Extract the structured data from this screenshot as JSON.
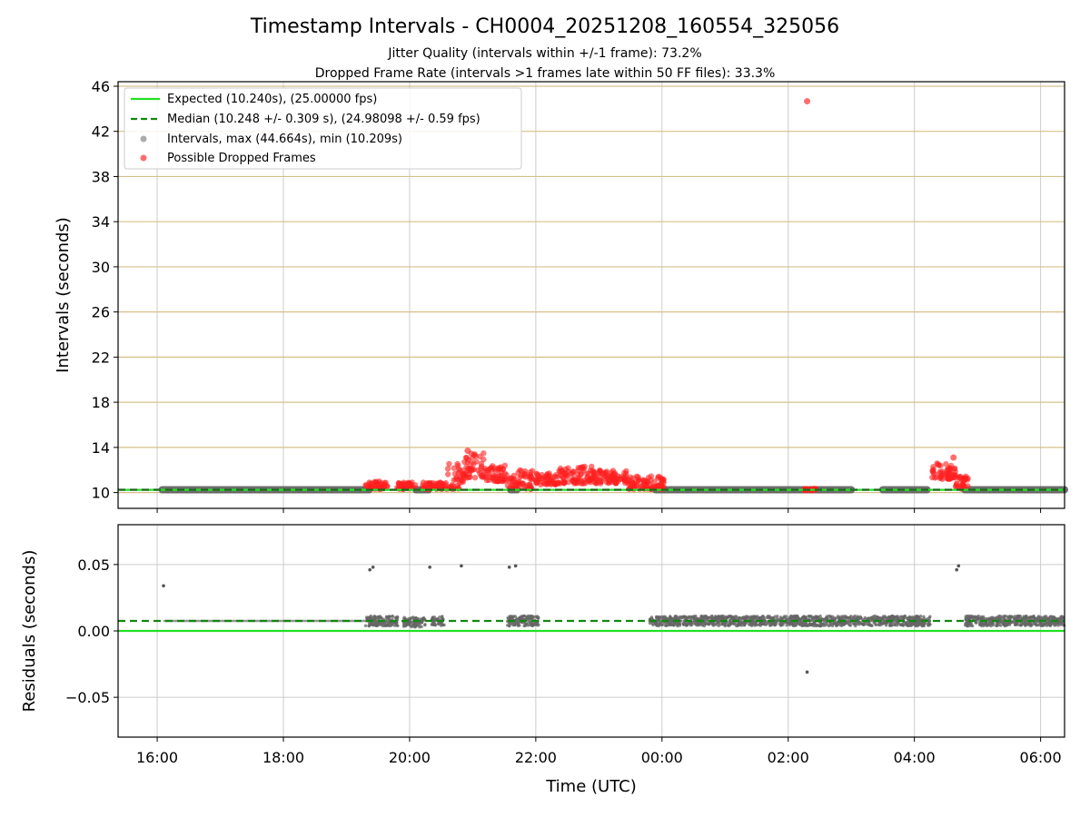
{
  "figure": {
    "title": "Timestamp Intervals - CH0004_20251208_160554_325056",
    "subtitle_1": "Jitter Quality (intervals within +/-1 frame): 73.2%",
    "subtitle_2": "Dropped Frame Rate (intervals >1 frames late within 50 FF files): 33.3%"
  },
  "chart_data": [
    {
      "type": "scatter",
      "ylabel": "Intervals (seconds)",
      "xlabel": "",
      "xlim_hours": [
        15.38,
        30.38
      ],
      "ylim": [
        8.6,
        46.4
      ],
      "yticks": [
        10,
        14,
        18,
        22,
        26,
        30,
        34,
        38,
        42,
        46
      ],
      "grid": true,
      "legend_position": "top-left",
      "legend": [
        {
          "label": "Expected (10.240s), (25.00000 fps)",
          "style": "solid-line",
          "color": "#22e022"
        },
        {
          "label": "Median (10.248 +/- 0.309 s), (24.98098 +/- 0.59 fps)",
          "style": "dashed-line",
          "color": "#118811"
        },
        {
          "label": "Intervals, max (44.664s), min (10.209s)",
          "style": "marker",
          "color": "#888888"
        },
        {
          "label": "Possible Dropped Frames",
          "style": "marker",
          "color": "#ff3030"
        }
      ],
      "expected_interval": 10.24,
      "median_interval": 10.248,
      "intervals_segments_hours": [
        [
          16.08,
          19.36
        ],
        [
          20.1,
          20.3
        ],
        [
          21.6,
          21.7
        ],
        [
          23.9,
          27.0
        ],
        [
          27.5,
          28.2
        ],
        [
          28.8,
          30.38
        ]
      ],
      "dropped_frame_clusters": [
        {
          "start_hour": 19.3,
          "end_hour": 19.65,
          "low": 10.3,
          "high": 11.0
        },
        {
          "start_hour": 19.8,
          "end_hour": 20.1,
          "low": 10.3,
          "high": 10.9
        },
        {
          "start_hour": 20.2,
          "end_hour": 20.6,
          "low": 10.3,
          "high": 10.9
        },
        {
          "start_hour": 20.6,
          "end_hour": 20.85,
          "low": 10.3,
          "high": 12.6
        },
        {
          "start_hour": 20.85,
          "end_hour": 21.2,
          "low": 11.3,
          "high": 13.6
        },
        {
          "start_hour": 21.2,
          "end_hour": 21.55,
          "low": 11.0,
          "high": 12.4
        },
        {
          "start_hour": 21.55,
          "end_hour": 21.95,
          "low": 10.3,
          "high": 12.0
        },
        {
          "start_hour": 22.0,
          "end_hour": 22.35,
          "low": 10.7,
          "high": 11.8
        },
        {
          "start_hour": 22.35,
          "end_hour": 22.9,
          "low": 10.8,
          "high": 12.4
        },
        {
          "start_hour": 22.9,
          "end_hour": 23.45,
          "low": 10.8,
          "high": 12.0
        },
        {
          "start_hour": 23.45,
          "end_hour": 24.05,
          "low": 10.3,
          "high": 11.5
        },
        {
          "start_hour": 26.25,
          "end_hour": 26.45,
          "low": 10.2,
          "high": 10.35
        },
        {
          "start_hour": 28.25,
          "end_hour": 28.65,
          "low": 11.2,
          "high": 12.6
        },
        {
          "start_hour": 28.65,
          "end_hour": 28.85,
          "low": 10.3,
          "high": 11.6
        }
      ],
      "dropped_frame_outliers": [
        {
          "hour": 26.3,
          "value": 44.664
        },
        {
          "hour": 20.92,
          "value": 13.7
        },
        {
          "hour": 28.62,
          "value": 13.1
        }
      ],
      "point_colors": {
        "interval": "#555555",
        "dropped": "#ff2020"
      }
    },
    {
      "type": "scatter",
      "ylabel": "Residuals (seconds)",
      "xlabel": "Time (UTC)",
      "xlim_hours": [
        15.38,
        30.38
      ],
      "ylim": [
        -0.08,
        0.08
      ],
      "yticks": [
        -0.05,
        0.0,
        0.05
      ],
      "ytick_labels": [
        "−0.05",
        "0.00",
        "0.05"
      ],
      "grid": true,
      "expected_residual": 0.0,
      "median_residual": 0.0075,
      "residual_segments": [
        {
          "start_hour": 16.1,
          "end_hour": 19.3,
          "value": 0.0075,
          "density": "sparse"
        },
        {
          "start_hour": 19.3,
          "end_hour": 19.82,
          "value": 0.0075,
          "density": "dense"
        },
        {
          "start_hour": 19.9,
          "end_hour": 20.25,
          "value": 0.0065,
          "density": "dense"
        },
        {
          "start_hour": 20.35,
          "end_hour": 20.55,
          "value": 0.0075,
          "density": "dense"
        },
        {
          "start_hour": 21.55,
          "end_hour": 22.05,
          "value": 0.0075,
          "density": "dense"
        },
        {
          "start_hour": 23.8,
          "end_hour": 28.25,
          "value": 0.0075,
          "density": "dense"
        },
        {
          "start_hour": 28.8,
          "end_hour": 30.38,
          "value": 0.0075,
          "density": "dense"
        }
      ],
      "residual_outliers": [
        {
          "hour": 16.1,
          "value": 0.034
        },
        {
          "hour": 19.37,
          "value": 0.046
        },
        {
          "hour": 19.42,
          "value": 0.048
        },
        {
          "hour": 20.32,
          "value": 0.048
        },
        {
          "hour": 20.82,
          "value": 0.049
        },
        {
          "hour": 21.58,
          "value": 0.048
        },
        {
          "hour": 21.68,
          "value": 0.049
        },
        {
          "hour": 26.3,
          "value": -0.031
        },
        {
          "hour": 28.67,
          "value": 0.046
        },
        {
          "hour": 28.7,
          "value": 0.049
        }
      ],
      "xticks_hours": [
        16,
        18,
        20,
        22,
        24,
        26,
        28,
        30
      ],
      "xtick_labels": [
        "16:00",
        "18:00",
        "20:00",
        "22:00",
        "00:00",
        "02:00",
        "04:00",
        "06:00"
      ]
    }
  ]
}
